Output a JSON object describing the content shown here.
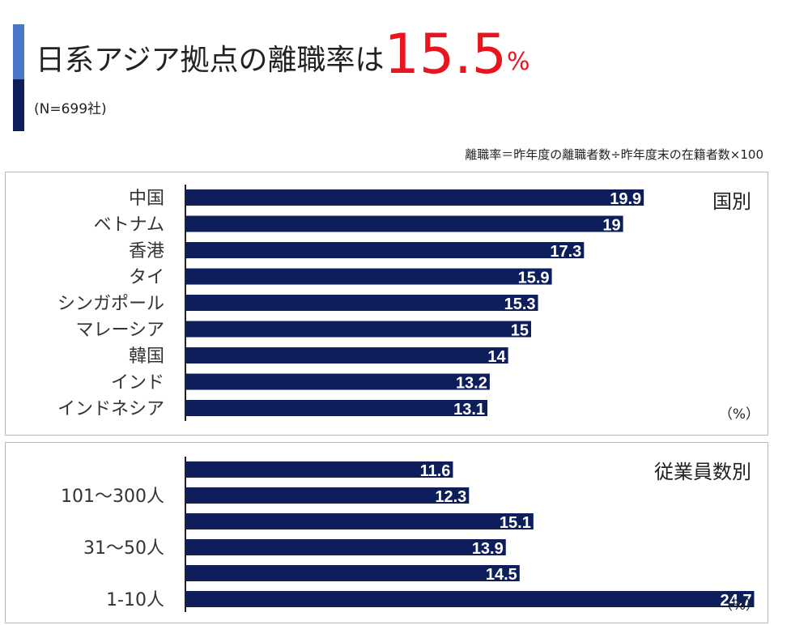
{
  "header": {
    "title_prefix": "日系アジア拠点の離職率は",
    "title_value": "15.5",
    "title_unit": "%",
    "subtitle": "(N=699社)",
    "formula": "離職率＝昨年度の離職者数÷昨年度末の在籍者数×100"
  },
  "colors": {
    "bar": "#0e1e5a",
    "accent_light": "#4a78c8",
    "accent_dark": "#0e1e5a",
    "highlight": "#e8141e"
  },
  "chart_data": [
    {
      "type": "bar",
      "orientation": "horizontal",
      "title": "国別",
      "unit": "（%）",
      "categories": [
        "中国",
        "ベトナム",
        "香港",
        "タイ",
        "シンガポール",
        "マレーシア",
        "韓国",
        "インド",
        "インドネシア"
      ],
      "values": [
        19.9,
        19,
        17.3,
        15.9,
        15.3,
        15,
        14,
        13.2,
        13.1
      ],
      "data_labels": [
        "19.9",
        "19",
        "17.3",
        "15.9",
        "15.3",
        "15",
        "14",
        "13.2",
        "13.1"
      ],
      "xlim": [
        0,
        28
      ],
      "grid": false
    },
    {
      "type": "bar",
      "orientation": "horizontal",
      "title": "従業員数別",
      "unit": "（%）",
      "categories": [
        "",
        "101〜300人",
        "",
        "31〜50人",
        "",
        "1-10人"
      ],
      "values": [
        11.6,
        12.3,
        15.1,
        13.9,
        14.5,
        24.7
      ],
      "data_labels": [
        "11.6",
        "12.3",
        "15.1",
        "13.9",
        "14.5",
        "24.7"
      ],
      "xlim": [
        0,
        28
      ],
      "grid": false
    }
  ]
}
